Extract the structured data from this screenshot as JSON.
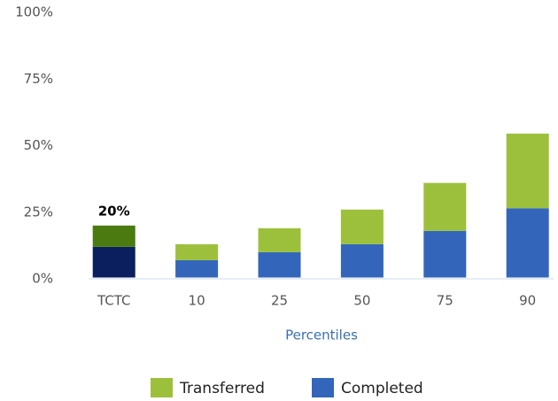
{
  "chart_data": {
    "type": "stacked_bar",
    "categories": [
      "TCTC",
      "10",
      "25",
      "50",
      "75",
      "90"
    ],
    "series": [
      {
        "name": "Completed",
        "color": "#3366bb",
        "colors": [
          "#0b1f5f",
          "#3366bb",
          "#3366bb",
          "#3366bb",
          "#3366bb",
          "#3366bb"
        ],
        "values": [
          12,
          7,
          10,
          13,
          18,
          26.5
        ]
      },
      {
        "name": "Transferred",
        "color": "#9dc03c",
        "colors": [
          "#4a7a10",
          "#9dc03c",
          "#9dc03c",
          "#9dc03c",
          "#9dc03c",
          "#9dc03c"
        ],
        "values": [
          8,
          6,
          9,
          13,
          18,
          28
        ]
      }
    ],
    "annotations": [
      {
        "x": "TCTC",
        "label": "20%",
        "value": 20
      }
    ],
    "x_label": "Percentiles",
    "ylim": [
      0,
      100
    ],
    "yticks": [
      {
        "value": 0,
        "label": "0%"
      },
      {
        "value": 25,
        "label": "25%"
      },
      {
        "value": 50,
        "label": "50%"
      },
      {
        "value": 75,
        "label": "75%"
      },
      {
        "value": 100,
        "label": "100%"
      }
    ],
    "grid": false,
    "legend": "bottom"
  }
}
